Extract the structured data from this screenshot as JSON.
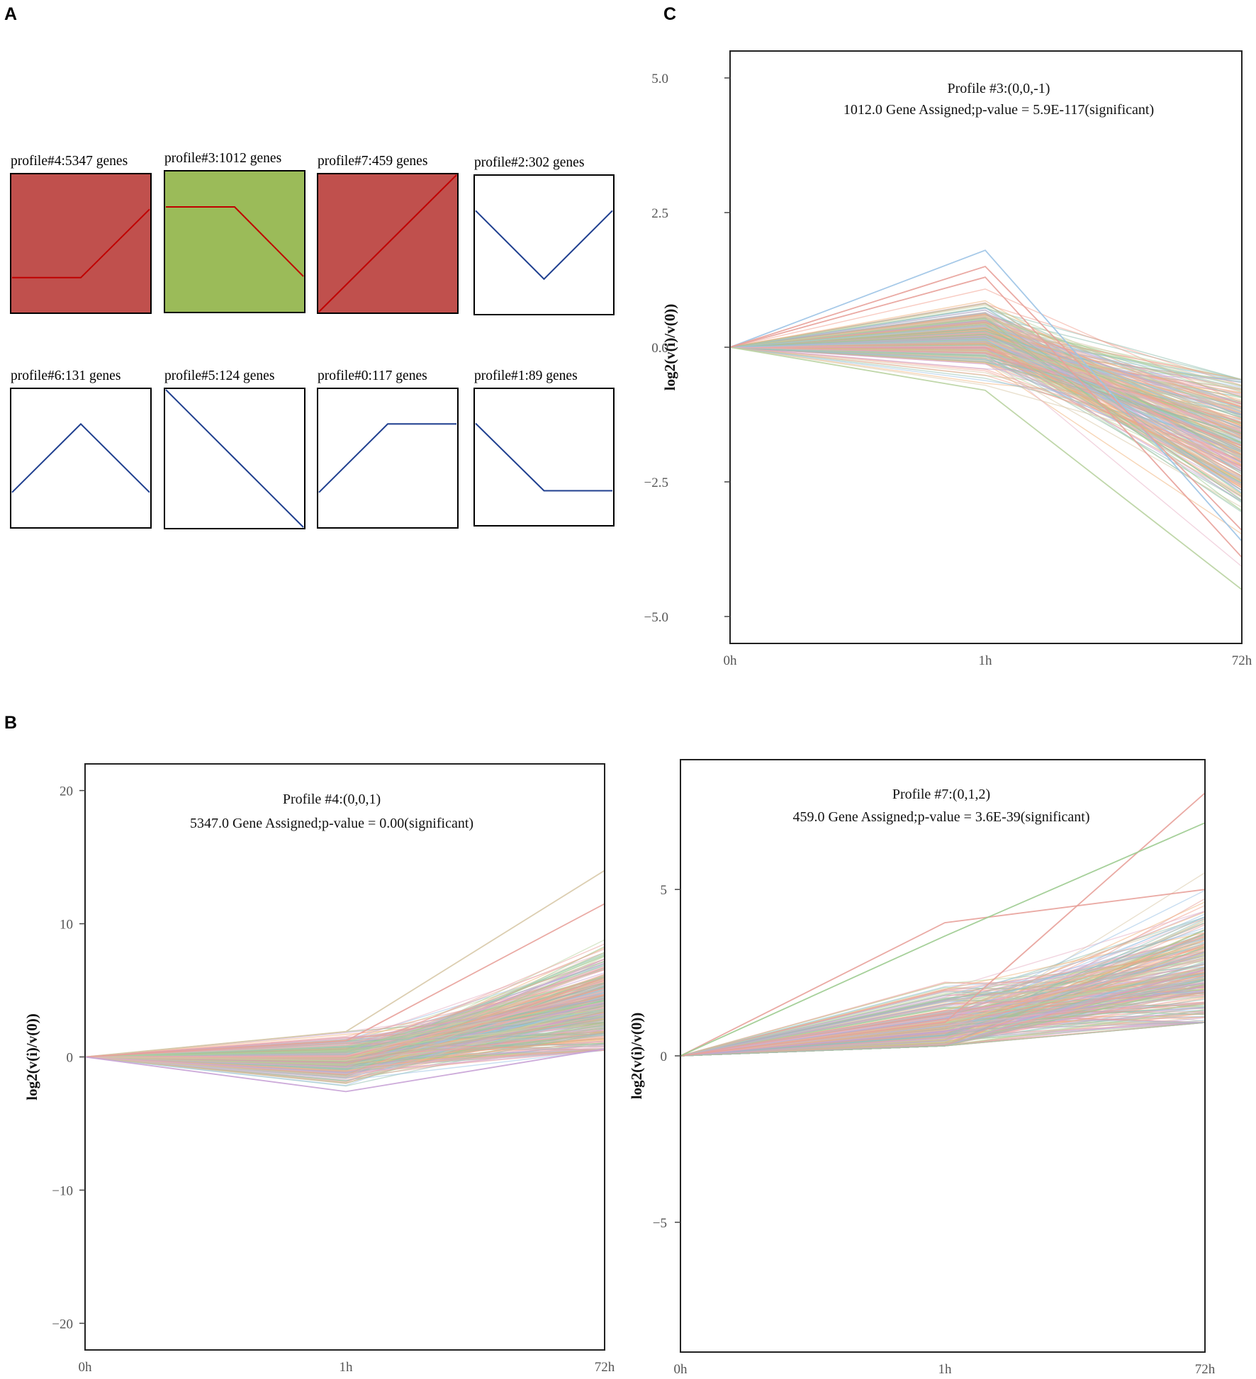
{
  "panel_letters": {
    "a": "A",
    "b": "B",
    "c": "C"
  },
  "colors": {
    "red_fill": "#c0504d",
    "green_fill": "#9bbb59",
    "red_line": "#c00000",
    "blue_line": "#1f3f8f",
    "trace_palette": [
      "#e8a19a",
      "#9ccb8f",
      "#9cc3e5",
      "#f2a08f",
      "#b9d3a1",
      "#d8c9a8",
      "#8fbfae",
      "#e7b3c7",
      "#c8a2d6",
      "#f0b27a"
    ]
  },
  "chart_data": [
    {
      "id": "A",
      "type": "line",
      "kind": "profile_thumbnails",
      "profiles": [
        {
          "label": "profile#4:5347 genes",
          "values": [
            0,
            0,
            1
          ],
          "fill": "red"
        },
        {
          "label": "profile#3:1012 genes",
          "values": [
            0,
            0,
            -1
          ],
          "fill": "green"
        },
        {
          "label": "profile#7:459 genes",
          "values": [
            0,
            1,
            2
          ],
          "fill": "red"
        },
        {
          "label": "profile#2:302 genes",
          "values": [
            0,
            -1,
            0
          ],
          "fill": "none"
        },
        {
          "label": "profile#6:131 genes",
          "values": [
            0,
            1,
            0
          ],
          "fill": "none"
        },
        {
          "label": "profile#5:124 genes",
          "values": [
            0,
            -1,
            -2
          ],
          "fill": "none"
        },
        {
          "label": "profile#0:117 genes",
          "values": [
            0,
            1,
            1
          ],
          "fill": "none"
        },
        {
          "label": "profile#1:89 genes",
          "values": [
            0,
            -1,
            -1
          ],
          "fill": "none"
        }
      ]
    },
    {
      "id": "C",
      "type": "line",
      "title": "Profile #3:(0,0,-1)",
      "subtitle": "1012.0 Gene Assigned;p-value = 5.9E-117(significant)",
      "xlabel": "",
      "ylabel": "log2(v(i)/v(0))",
      "categories": [
        "0h",
        "1h",
        "72h"
      ],
      "ylim": [
        -5.5,
        5.5
      ],
      "yticks": [
        5.0,
        2.5,
        0.0,
        -2.5,
        -5.0
      ],
      "ytick_labels": [
        "5.0",
        "2.5",
        "0.0",
        "−2.5",
        "−5.0"
      ],
      "grid": false,
      "trace_count": 300,
      "band_1h": {
        "min": -0.8,
        "max": 1.8,
        "mean": 0.2,
        "sd": 0.3
      },
      "band_72h": {
        "min": -4.5,
        "max": -0.6,
        "mean": -1.7,
        "sd": 0.65
      },
      "highlighted_traces": [
        {
          "values": [
            0,
            1.8,
            -3.6
          ],
          "color": "#9cc3e5"
        },
        {
          "values": [
            0,
            1.5,
            -3.4
          ],
          "color": "#e8a19a"
        },
        {
          "values": [
            0,
            -0.8,
            -4.5
          ],
          "color": "#b9d3a1"
        },
        {
          "values": [
            0,
            1.3,
            -3.9
          ],
          "color": "#e8a19a"
        }
      ]
    },
    {
      "id": "B1",
      "type": "line",
      "title": "Profile #4:(0,0,1)",
      "subtitle": "5347.0 Gene Assigned;p-value = 0.00(significant)",
      "xlabel": "",
      "ylabel": "log2(v(i)/v(0))",
      "categories": [
        "0h",
        "1h",
        "72h"
      ],
      "ylim": [
        -22,
        22
      ],
      "yticks": [
        20,
        10,
        0,
        -10,
        -20
      ],
      "ytick_labels": [
        "20",
        "10",
        "0",
        "−10",
        "−20"
      ],
      "grid": false,
      "trace_count": 420,
      "band_1h": {
        "min": -2.6,
        "max": 1.9,
        "mean": -0.2,
        "sd": 0.75
      },
      "band_72h": {
        "min": 0.5,
        "max": 14.0,
        "mean": 3.8,
        "sd": 2.0
      },
      "highlighted_traces": [
        {
          "values": [
            0,
            1.9,
            14.0
          ],
          "color": "#d8c9a8"
        },
        {
          "values": [
            0,
            1.2,
            11.5
          ],
          "color": "#e8a19a"
        },
        {
          "values": [
            0,
            -2.6,
            0.6
          ],
          "color": "#c8a2d6"
        }
      ]
    },
    {
      "id": "B2",
      "type": "line",
      "title": "Profile #7:(0,1,2)",
      "subtitle": "459.0 Gene Assigned;p-value = 3.6E-39(significant)",
      "xlabel": "",
      "ylabel": "log2(v(i)/v(0))",
      "categories": [
        "0h",
        "1h",
        "72h"
      ],
      "ylim": [
        -8.9,
        8.9
      ],
      "yticks": [
        5,
        0,
        -5
      ],
      "ytick_labels": [
        "5",
        "0",
        "−5"
      ],
      "grid": false,
      "trace_count": 300,
      "band_1h": {
        "min": 0.3,
        "max": 4.0,
        "mean": 0.9,
        "sd": 0.55
      },
      "band_72h": {
        "min": 1.0,
        "max": 7.9,
        "mean": 2.5,
        "sd": 1.1
      },
      "highlighted_traces": [
        {
          "values": [
            0,
            1.0,
            7.9
          ],
          "color": "#e8a19a"
        },
        {
          "values": [
            0,
            4.0,
            5.0
          ],
          "color": "#e8a19a"
        },
        {
          "values": [
            0,
            3.6,
            7.0
          ],
          "color": "#9ccb8f"
        }
      ]
    }
  ]
}
